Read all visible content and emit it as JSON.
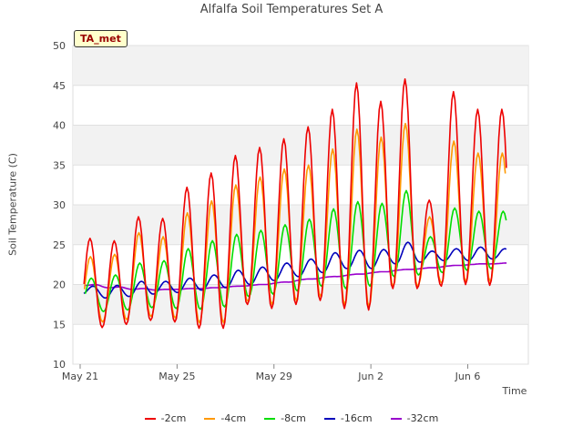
{
  "chart_data": {
    "type": "line",
    "title": "Alfalfa Soil Temperatures Set A",
    "station_badge": "TA_met",
    "xlabel": "Time",
    "ylabel": "Soil Temperature (C)",
    "xlim": [
      0,
      18.5
    ],
    "ylim": [
      10,
      50
    ],
    "y_ticks": [
      10,
      15,
      20,
      25,
      30,
      35,
      40,
      45,
      50
    ],
    "x_ticks": [
      {
        "label": "May 21",
        "day": 0
      },
      {
        "label": "May 25",
        "day": 4
      },
      {
        "label": "May 29",
        "day": 8
      },
      {
        "label": "Jun 2",
        "day": 12
      },
      {
        "label": "Jun 6",
        "day": 16
      }
    ],
    "banded_background": true,
    "legend_position": "bottom",
    "daily_peak_day_offset": 0.6,
    "days": [
      0,
      1,
      2,
      3,
      4,
      5,
      6,
      7,
      8,
      9,
      10,
      11,
      12,
      13,
      14,
      15,
      16,
      17
    ],
    "series": [
      {
        "name": "-2cm",
        "color": "#ee0000",
        "mean_offset": -0.55,
        "daily_min": [
          15.2,
          14.6,
          15.0,
          15.5,
          15.3,
          14.5,
          14.5,
          17.5,
          17.0,
          17.5,
          18.0,
          17.0,
          16.8,
          19.5,
          19.5,
          19.8,
          20.0,
          19.9
        ],
        "daily_max": [
          25.8,
          25.5,
          28.5,
          28.3,
          32.2,
          34.0,
          36.2,
          37.2,
          38.3,
          39.8,
          42.0,
          45.3,
          43.0,
          45.8,
          30.6,
          44.2,
          42.0,
          42.0
        ]
      },
      {
        "name": "-4cm",
        "color": "#ff9900",
        "mean_offset": -0.5,
        "daily_min": [
          16.0,
          15.3,
          15.6,
          16.0,
          15.8,
          15.2,
          15.2,
          17.9,
          17.5,
          18.0,
          18.5,
          17.5,
          17.2,
          19.8,
          19.8,
          20.2,
          20.4,
          20.4
        ],
        "daily_max": [
          23.5,
          23.8,
          26.5,
          26.0,
          29.0,
          30.5,
          32.5,
          33.5,
          34.5,
          35.0,
          37.0,
          39.5,
          38.5,
          40.2,
          28.5,
          38.0,
          36.5,
          36.5
        ]
      },
      {
        "name": "-8cm",
        "color": "#00dd00",
        "mean_offset": -0.4,
        "daily_min": [
          17.3,
          16.6,
          16.8,
          17.1,
          17.0,
          16.9,
          17.2,
          18.5,
          18.8,
          19.2,
          19.8,
          19.5,
          19.8,
          21.0,
          21.2,
          21.5,
          21.8,
          22.0
        ],
        "daily_max": [
          20.8,
          21.2,
          22.7,
          23.0,
          24.5,
          25.5,
          26.3,
          26.8,
          27.5,
          28.2,
          29.5,
          30.4,
          30.2,
          31.8,
          26.0,
          29.6,
          29.2,
          29.2
        ]
      },
      {
        "name": "-16cm",
        "color": "#0000bb",
        "mean_offset": -0.2,
        "daily_min": [
          18.8,
          18.3,
          18.5,
          18.8,
          19.0,
          19.3,
          19.6,
          20.0,
          20.5,
          21.0,
          21.5,
          22.0,
          22.0,
          22.6,
          22.8,
          23.0,
          23.0,
          23.2
        ],
        "daily_max": [
          19.8,
          19.9,
          20.4,
          20.4,
          20.8,
          21.2,
          21.8,
          22.2,
          22.7,
          23.2,
          24.0,
          24.3,
          24.4,
          25.3,
          24.2,
          24.5,
          24.7,
          24.5
        ]
      },
      {
        "name": "-32cm",
        "color": "#9900cc",
        "mean_offset": 0.0,
        "daily_min": [
          19.9,
          19.6,
          19.4,
          19.3,
          19.4,
          19.5,
          19.7,
          19.9,
          20.2,
          20.6,
          20.9,
          21.2,
          21.5,
          21.8,
          22.0,
          22.3,
          22.5,
          22.6
        ],
        "daily_max": [
          20.0,
          19.7,
          19.5,
          19.4,
          19.5,
          19.6,
          19.8,
          20.0,
          20.3,
          20.7,
          21.0,
          21.3,
          21.6,
          21.9,
          22.1,
          22.4,
          22.6,
          22.7
        ]
      }
    ]
  }
}
